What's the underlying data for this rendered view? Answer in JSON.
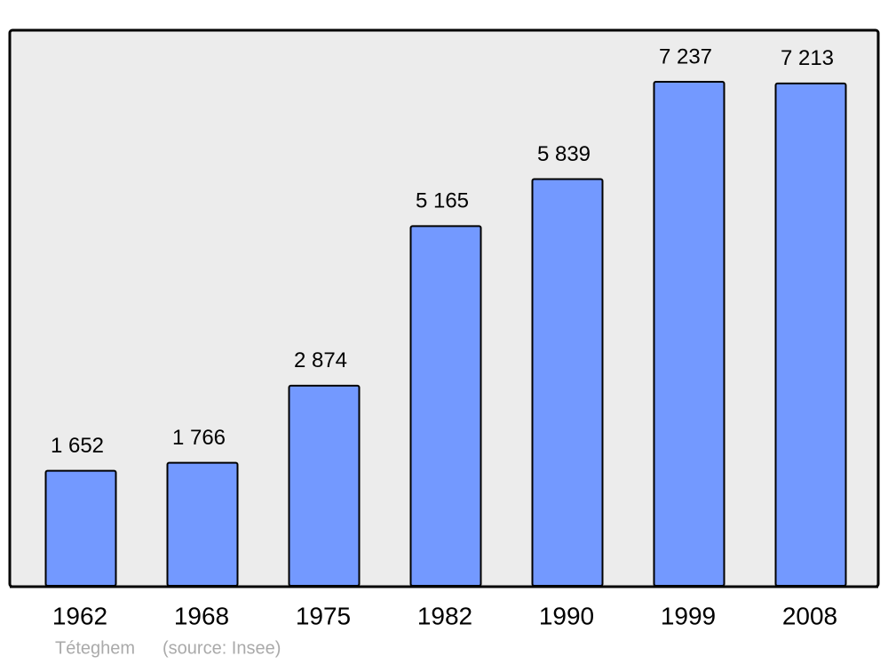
{
  "chart_data": {
    "type": "bar",
    "categories": [
      "1962",
      "1968",
      "1975",
      "1982",
      "1990",
      "1999",
      "2008"
    ],
    "values": [
      1652,
      1766,
      2874,
      5165,
      5839,
      7237,
      7213
    ],
    "value_labels": [
      "1 652",
      "1 766",
      "2 874",
      "5 165",
      "5 839",
      "7 237",
      "7 213"
    ],
    "color": "#7399ff",
    "place": "Téteghem",
    "source": "(source: Insee)"
  }
}
